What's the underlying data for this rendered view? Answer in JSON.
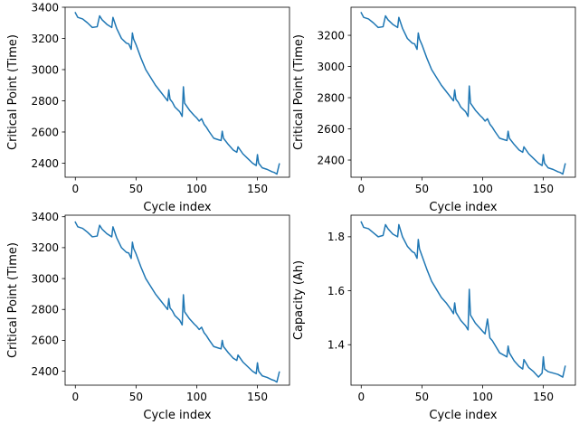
{
  "chart_data": [
    {
      "type": "line",
      "title": "",
      "xlabel": "Cycle index",
      "ylabel": "Critical Point (Time)",
      "xlim": [
        -8.4,
        176.4
      ],
      "ylim": [
        2310,
        3400
      ],
      "x_ticks": [
        "0",
        "50",
        "100",
        "150"
      ],
      "y_ticks": [
        "2400",
        "2600",
        "2800",
        "3000",
        "3200",
        "3400"
      ],
      "grid": false,
      "legend": "none",
      "color": "#1f77b4",
      "series": [
        {
          "x": [
            0,
            2,
            6,
            10,
            14,
            18,
            20,
            22,
            26,
            30,
            31,
            34,
            38,
            42,
            44,
            46,
            47,
            48,
            50,
            54,
            58,
            62,
            66,
            70,
            74,
            76,
            77,
            78,
            80,
            82,
            86,
            88,
            89,
            90,
            94,
            98,
            100,
            102,
            104,
            106,
            108,
            110,
            114,
            118,
            120,
            121,
            122,
            126,
            130,
            133,
            134,
            138,
            142,
            146,
            149,
            150,
            151,
            154,
            158,
            162,
            164,
            166,
            168
          ],
          "values": [
            3365,
            3335,
            3325,
            3300,
            3270,
            3275,
            3345,
            3320,
            3290,
            3270,
            3335,
            3265,
            3200,
            3170,
            3165,
            3130,
            3235,
            3195,
            3160,
            3075,
            3000,
            2950,
            2900,
            2860,
            2820,
            2800,
            2870,
            2810,
            2790,
            2760,
            2730,
            2700,
            2890,
            2785,
            2740,
            2705,
            2690,
            2670,
            2685,
            2650,
            2630,
            2605,
            2560,
            2550,
            2545,
            2605,
            2560,
            2520,
            2485,
            2470,
            2505,
            2460,
            2430,
            2400,
            2385,
            2455,
            2400,
            2370,
            2360,
            2345,
            2340,
            2330,
            2395
          ]
        }
      ]
    },
    {
      "type": "line",
      "title": "",
      "xlabel": "Cycle index",
      "ylabel": "Critical Point (Time)",
      "xlim": [
        -8.4,
        176.4
      ],
      "ylim": [
        2290,
        3380
      ],
      "x_ticks": [
        "0",
        "50",
        "100",
        "150"
      ],
      "y_ticks": [
        "2400",
        "2600",
        "2800",
        "3000",
        "3200"
      ],
      "grid": false,
      "legend": "none",
      "color": "#1f77b4",
      "series": [
        {
          "x": [
            0,
            2,
            6,
            10,
            14,
            18,
            20,
            22,
            26,
            30,
            31,
            34,
            38,
            42,
            44,
            46,
            47,
            48,
            50,
            54,
            58,
            62,
            66,
            70,
            74,
            76,
            77,
            78,
            80,
            82,
            86,
            88,
            89,
            90,
            94,
            98,
            100,
            102,
            104,
            106,
            108,
            110,
            114,
            118,
            120,
            121,
            122,
            126,
            130,
            133,
            134,
            138,
            142,
            146,
            149,
            150,
            151,
            154,
            158,
            162,
            164,
            166,
            168
          ],
          "values": [
            3345,
            3315,
            3305,
            3280,
            3250,
            3255,
            3325,
            3300,
            3270,
            3250,
            3315,
            3245,
            3180,
            3150,
            3145,
            3110,
            3215,
            3175,
            3140,
            3055,
            2980,
            2930,
            2880,
            2840,
            2800,
            2780,
            2850,
            2790,
            2770,
            2740,
            2710,
            2680,
            2875,
            2765,
            2720,
            2685,
            2670,
            2650,
            2665,
            2630,
            2610,
            2585,
            2540,
            2530,
            2525,
            2585,
            2540,
            2500,
            2465,
            2450,
            2485,
            2440,
            2410,
            2380,
            2365,
            2435,
            2380,
            2350,
            2340,
            2325,
            2320,
            2310,
            2375
          ]
        }
      ]
    },
    {
      "type": "line",
      "title": "",
      "xlabel": "Cycle index",
      "ylabel": "Critical Point (Time)",
      "xlim": [
        -8.4,
        176.4
      ],
      "ylim": [
        2310,
        3410
      ],
      "x_ticks": [
        "0",
        "50",
        "100",
        "150"
      ],
      "y_ticks": [
        "2400",
        "2600",
        "2800",
        "3000",
        "3200",
        "3400"
      ],
      "grid": false,
      "legend": "none",
      "color": "#1f77b4",
      "series": [
        {
          "x": [
            0,
            2,
            6,
            10,
            14,
            18,
            20,
            22,
            26,
            30,
            31,
            34,
            38,
            42,
            44,
            46,
            47,
            48,
            50,
            54,
            58,
            62,
            66,
            70,
            74,
            76,
            77,
            78,
            80,
            82,
            86,
            88,
            89,
            90,
            94,
            98,
            100,
            102,
            104,
            106,
            108,
            110,
            114,
            118,
            120,
            121,
            122,
            126,
            130,
            133,
            134,
            138,
            142,
            146,
            149,
            150,
            151,
            154,
            158,
            162,
            164,
            166,
            168
          ],
          "values": [
            3365,
            3335,
            3325,
            3300,
            3270,
            3275,
            3345,
            3320,
            3290,
            3270,
            3335,
            3265,
            3200,
            3170,
            3165,
            3130,
            3235,
            3195,
            3160,
            3075,
            3000,
            2950,
            2900,
            2860,
            2820,
            2800,
            2870,
            2810,
            2790,
            2760,
            2730,
            2700,
            2895,
            2785,
            2740,
            2705,
            2690,
            2670,
            2685,
            2650,
            2630,
            2605,
            2560,
            2550,
            2545,
            2600,
            2560,
            2520,
            2485,
            2470,
            2505,
            2460,
            2430,
            2400,
            2385,
            2455,
            2400,
            2370,
            2360,
            2345,
            2340,
            2330,
            2395
          ]
        }
      ]
    },
    {
      "type": "line",
      "title": "",
      "xlabel": "Cycle index",
      "ylabel": "Capacity (Ah)",
      "xlim": [
        -8.4,
        176.4
      ],
      "ylim": [
        1.25,
        1.88
      ],
      "x_ticks": [
        "0",
        "50",
        "100",
        "150"
      ],
      "y_ticks": [
        "1.4",
        "1.6",
        "1.8"
      ],
      "grid": false,
      "legend": "none",
      "color": "#1f77b4",
      "series": [
        {
          "x": [
            0,
            2,
            6,
            10,
            14,
            18,
            20,
            22,
            26,
            30,
            31,
            34,
            38,
            42,
            44,
            46,
            47,
            48,
            50,
            54,
            58,
            62,
            66,
            70,
            74,
            76,
            77,
            78,
            80,
            82,
            86,
            88,
            89,
            90,
            94,
            98,
            100,
            102,
            104,
            106,
            108,
            110,
            114,
            118,
            120,
            121,
            122,
            126,
            130,
            133,
            134,
            138,
            142,
            146,
            149,
            150,
            151,
            154,
            158,
            162,
            164,
            166,
            168
          ],
          "values": [
            1.855,
            1.835,
            1.83,
            1.815,
            1.8,
            1.805,
            1.845,
            1.83,
            1.81,
            1.8,
            1.845,
            1.8,
            1.765,
            1.745,
            1.74,
            1.72,
            1.79,
            1.755,
            1.73,
            1.68,
            1.635,
            1.605,
            1.575,
            1.555,
            1.53,
            1.515,
            1.555,
            1.52,
            1.505,
            1.49,
            1.47,
            1.455,
            1.605,
            1.51,
            1.48,
            1.46,
            1.45,
            1.44,
            1.495,
            1.425,
            1.415,
            1.4,
            1.37,
            1.36,
            1.355,
            1.395,
            1.37,
            1.34,
            1.32,
            1.31,
            1.345,
            1.315,
            1.3,
            1.28,
            1.295,
            1.355,
            1.31,
            1.3,
            1.295,
            1.29,
            1.285,
            1.28,
            1.32
          ]
        }
      ]
    }
  ]
}
